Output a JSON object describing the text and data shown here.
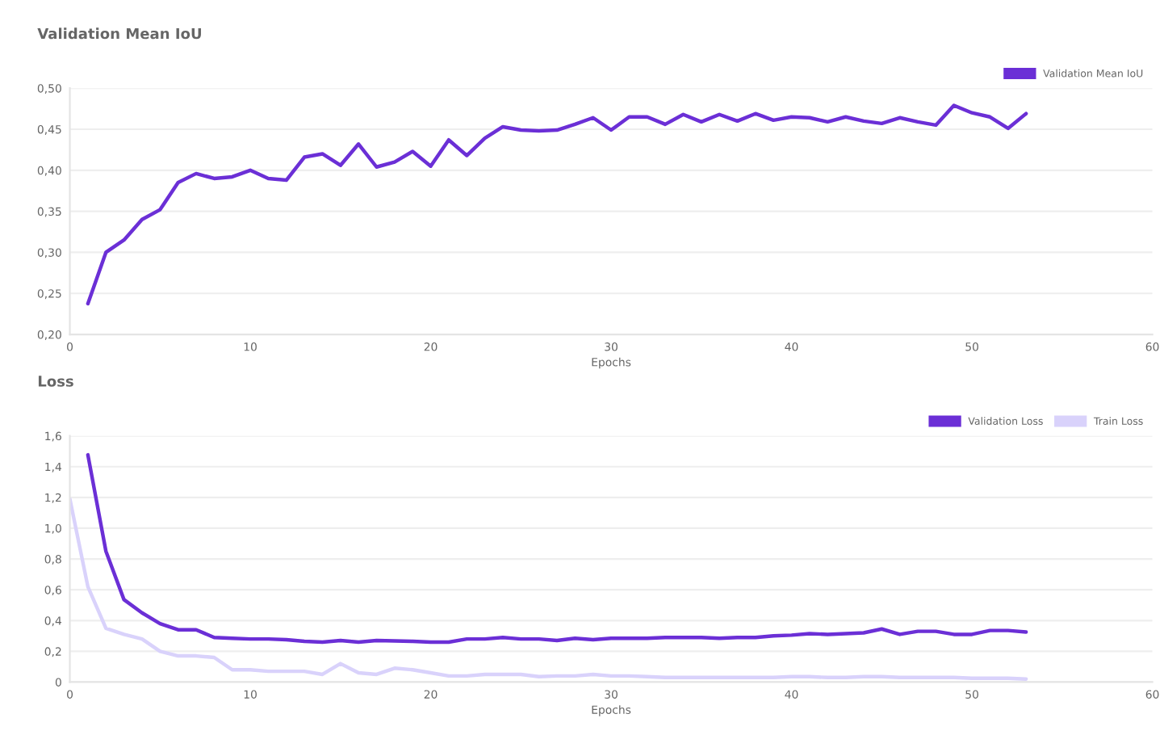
{
  "chart_data": [
    {
      "type": "line",
      "title": "Validation Mean IoU",
      "xlabel": "Epochs",
      "legend": "top right",
      "grid": "y",
      "xlim": [
        0,
        60
      ],
      "xticks": [
        0,
        10,
        20,
        30,
        40,
        50,
        60
      ],
      "ylim": [
        0.2,
        0.5
      ],
      "yticks": [
        {
          "value": 0.2,
          "label": "0,20"
        },
        {
          "value": 0.25,
          "label": "0,25"
        },
        {
          "value": 0.3,
          "label": "0,30"
        },
        {
          "value": 0.35,
          "label": "0,35"
        },
        {
          "value": 0.4,
          "label": "0,40"
        },
        {
          "value": 0.45,
          "label": "0,45"
        },
        {
          "value": 0.5,
          "label": "0,50"
        }
      ],
      "x": [
        1,
        2,
        3,
        4,
        5,
        6,
        7,
        8,
        9,
        10,
        11,
        12,
        13,
        14,
        15,
        16,
        17,
        18,
        19,
        20,
        21,
        22,
        23,
        24,
        25,
        26,
        27,
        28,
        29,
        30,
        31,
        32,
        33,
        34,
        35,
        36,
        37,
        38,
        39,
        40,
        41,
        42,
        43,
        44,
        45,
        46,
        47,
        48,
        49,
        50,
        51,
        52,
        53
      ],
      "series": [
        {
          "name": "Validation Mean IoU",
          "color": "#6b2fd6",
          "values": [
            0.2375,
            0.3,
            0.315,
            0.34,
            0.352,
            0.385,
            0.396,
            0.39,
            0.392,
            0.4,
            0.39,
            0.388,
            0.416,
            0.42,
            0.406,
            0.432,
            0.404,
            0.41,
            0.423,
            0.405,
            0.437,
            0.418,
            0.439,
            0.453,
            0.449,
            0.448,
            0.449,
            0.456,
            0.464,
            0.449,
            0.465,
            0.465,
            0.456,
            0.468,
            0.459,
            0.468,
            0.46,
            0.469,
            0.461,
            0.465,
            0.464,
            0.459,
            0.465,
            0.46,
            0.457,
            0.464,
            0.459,
            0.455,
            0.479,
            0.47,
            0.465,
            0.451,
            0.469
          ]
        }
      ]
    },
    {
      "type": "line",
      "title": "Loss",
      "xlabel": "Epochs",
      "legend": "top right",
      "grid": "y",
      "xlim": [
        0,
        60
      ],
      "xticks": [
        0,
        10,
        20,
        30,
        40,
        50,
        60
      ],
      "ylim": [
        0,
        1.6
      ],
      "yticks": [
        0,
        {
          "value": 0.2,
          "label": "0,2"
        },
        {
          "value": 0.4,
          "label": "0,4"
        },
        {
          "value": 0.6,
          "label": "0,6"
        },
        {
          "value": 0.8,
          "label": "0,8"
        },
        {
          "value": 1.0,
          "label": "1,0"
        },
        {
          "value": 1.2,
          "label": "1,2"
        },
        {
          "value": 1.4,
          "label": "1,4"
        },
        {
          "value": 1.6,
          "label": "1,6"
        }
      ],
      "series": [
        {
          "name": "Validation Loss",
          "color": "#6b2fd6",
          "x": [
            1,
            2,
            3,
            4,
            5,
            6,
            7,
            8,
            9,
            10,
            11,
            12,
            13,
            14,
            15,
            16,
            17,
            18,
            19,
            20,
            21,
            22,
            23,
            24,
            25,
            26,
            27,
            28,
            29,
            30,
            31,
            32,
            33,
            34,
            35,
            36,
            37,
            38,
            39,
            40,
            41,
            42,
            43,
            44,
            45,
            46,
            47,
            48,
            49,
            50,
            51,
            52,
            53
          ],
          "values": [
            1.477,
            0.85,
            0.536,
            0.45,
            0.38,
            0.34,
            0.34,
            0.29,
            0.285,
            0.28,
            0.28,
            0.275,
            0.265,
            0.26,
            0.27,
            0.26,
            0.27,
            0.268,
            0.265,
            0.26,
            0.26,
            0.28,
            0.28,
            0.29,
            0.28,
            0.28,
            0.27,
            0.285,
            0.275,
            0.285,
            0.285,
            0.285,
            0.29,
            0.29,
            0.29,
            0.285,
            0.29,
            0.29,
            0.3,
            0.305,
            0.315,
            0.31,
            0.315,
            0.32,
            0.345,
            0.31,
            0.33,
            0.33,
            0.31,
            0.31,
            0.335,
            0.335,
            0.325
          ]
        },
        {
          "name": "Train Loss",
          "color": "#d9d2fb",
          "x": [
            0,
            1,
            2,
            3,
            4,
            5,
            6,
            7,
            8,
            9,
            10,
            11,
            12,
            13,
            14,
            15,
            16,
            17,
            18,
            19,
            20,
            21,
            22,
            23,
            24,
            25,
            26,
            27,
            28,
            29,
            30,
            31,
            32,
            33,
            34,
            35,
            36,
            37,
            38,
            39,
            40,
            41,
            42,
            43,
            44,
            45,
            46,
            47,
            48,
            49,
            50,
            51,
            52,
            53
          ],
          "values": [
            1.19,
            0.62,
            0.35,
            0.31,
            0.28,
            0.2,
            0.17,
            0.17,
            0.16,
            0.08,
            0.08,
            0.07,
            0.07,
            0.07,
            0.05,
            0.12,
            0.06,
            0.05,
            0.09,
            0.08,
            0.06,
            0.04,
            0.04,
            0.05,
            0.05,
            0.05,
            0.035,
            0.04,
            0.04,
            0.05,
            0.04,
            0.04,
            0.035,
            0.03,
            0.03,
            0.03,
            0.03,
            0.03,
            0.03,
            0.03,
            0.035,
            0.035,
            0.03,
            0.03,
            0.035,
            0.035,
            0.03,
            0.03,
            0.03,
            0.03,
            0.025,
            0.025,
            0.025,
            0.02
          ]
        }
      ]
    }
  ]
}
